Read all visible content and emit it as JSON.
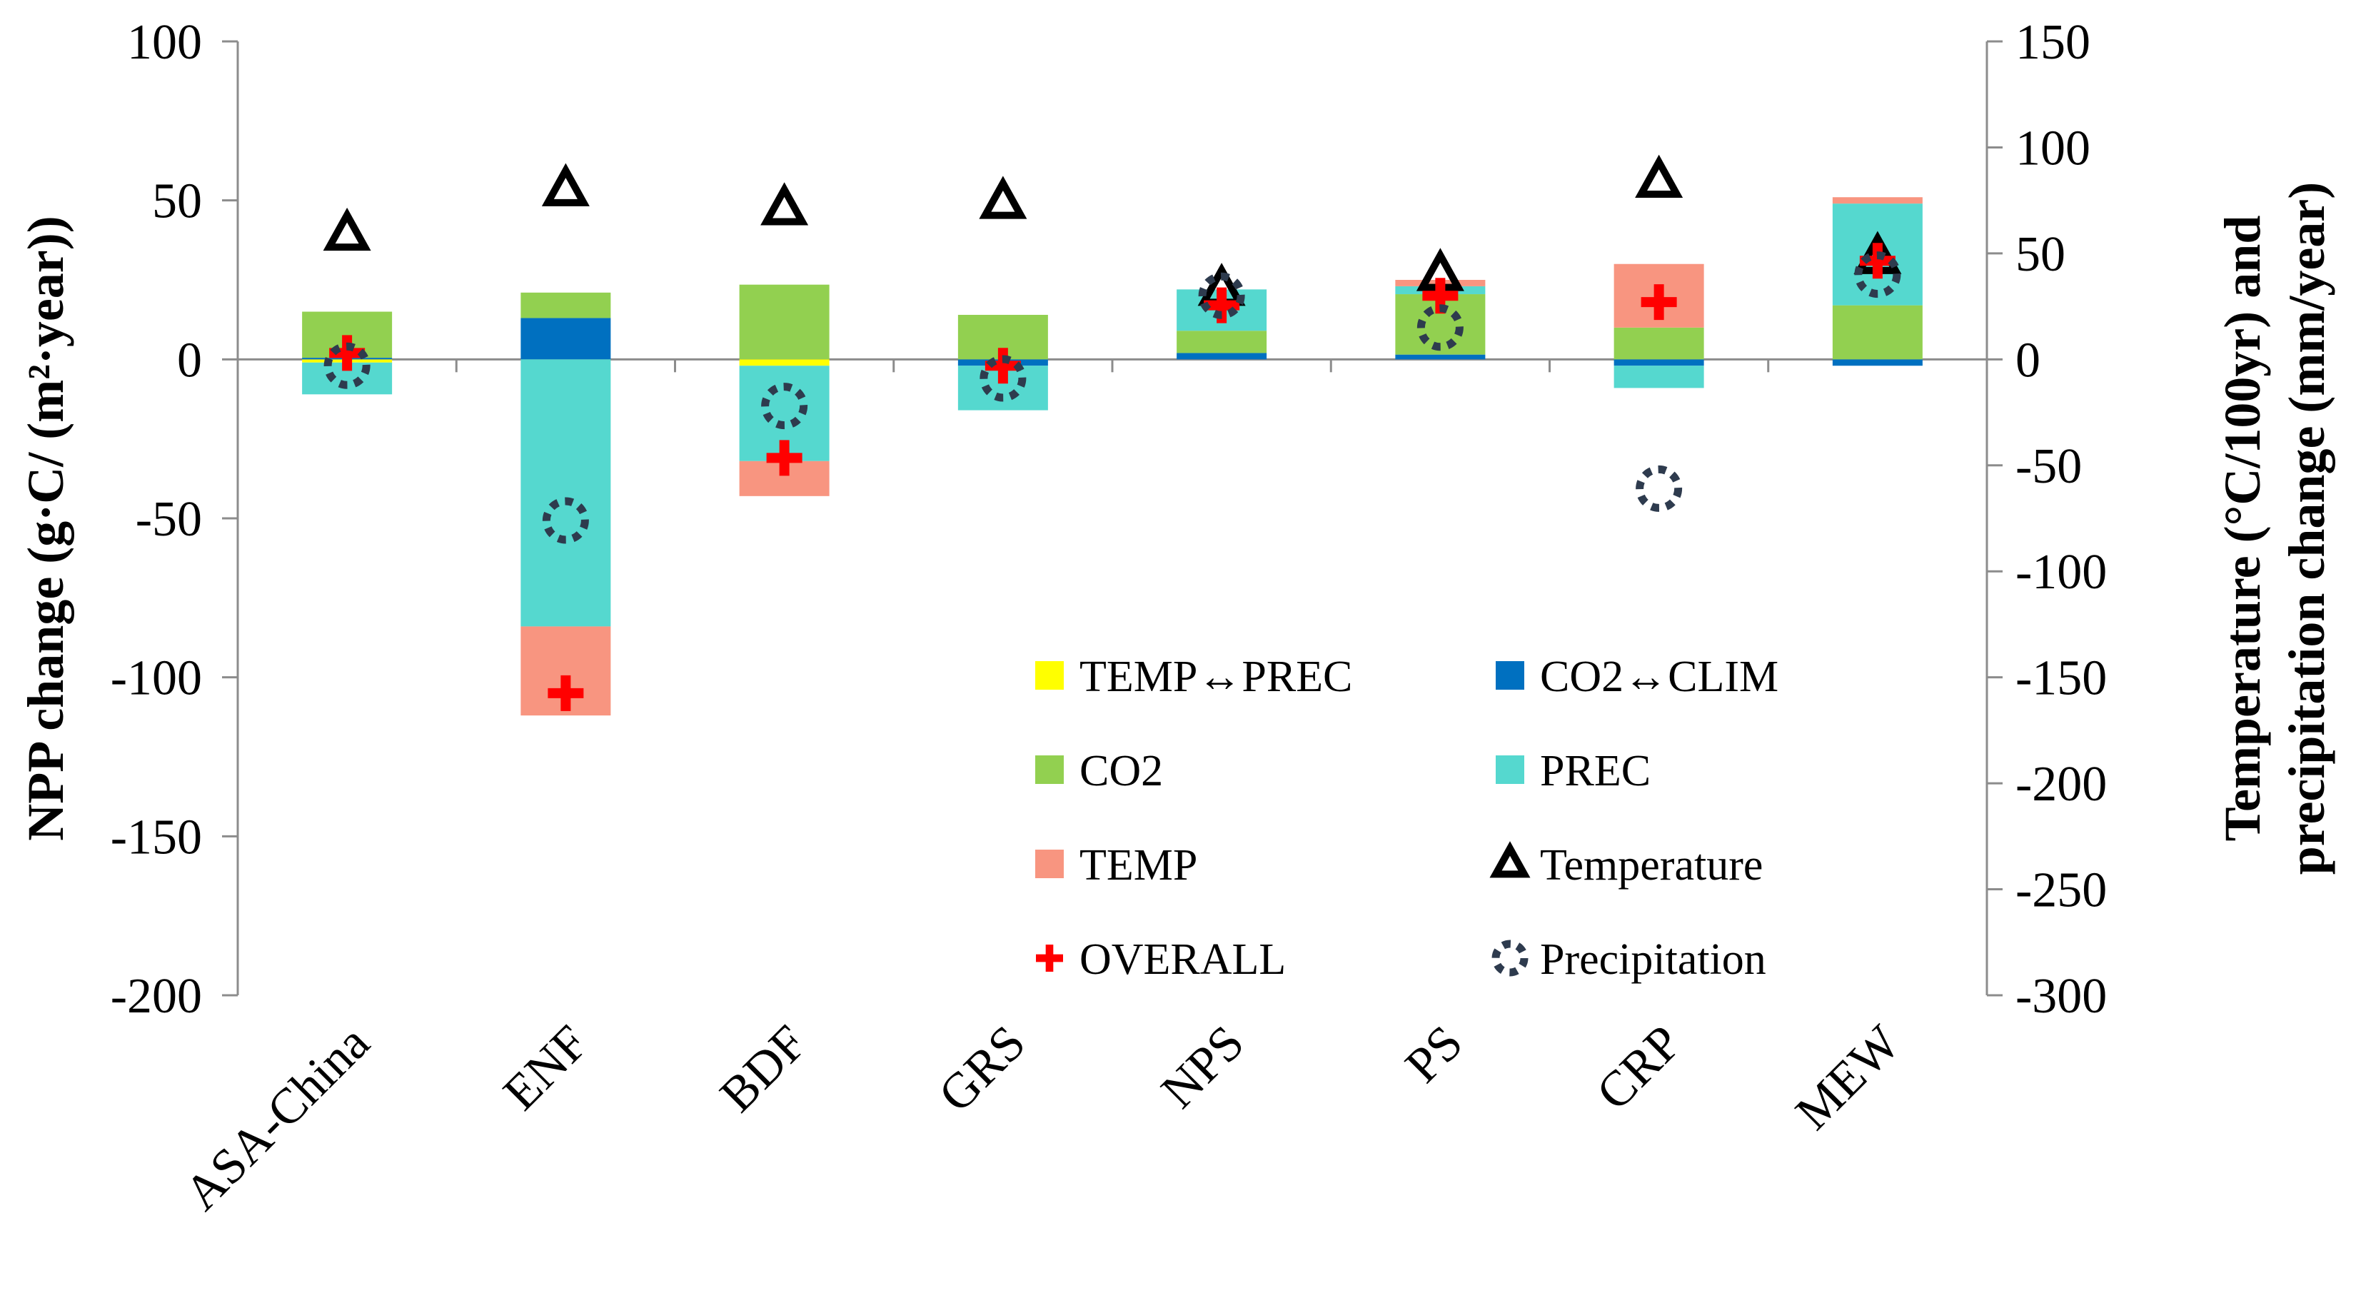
{
  "chart_data": {
    "type": "bar",
    "subtype": "stacked-bar-with-markers",
    "categories": [
      "ASA-China",
      "ENF",
      "BDF",
      "GRS",
      "NPS",
      "PS",
      "CRP",
      "MEW"
    ],
    "ylabel": "NPP change  (g·C/ (m²·year))",
    "y2label": [
      "Temperature (°C/100yr) and",
      "precipitation change (mm/year)"
    ],
    "ylim": [
      -200,
      100
    ],
    "y2lim": [
      -300,
      150
    ],
    "yticks": [
      "100",
      "50",
      "0",
      "-50",
      "-100",
      "-150",
      "-200"
    ],
    "y2ticks": [
      "150",
      "100",
      "50",
      "0",
      "-50",
      "-100",
      "-150",
      "-200",
      "-250",
      "-300"
    ],
    "legend_position": "lower-right inside plot",
    "series": [
      {
        "name": "TEMP↔PREC",
        "kind": "stacked",
        "color": "#FFFF00",
        "values": [
          -1,
          0,
          -2,
          0,
          0,
          0,
          0,
          0
        ]
      },
      {
        "name": "CO2↔CLIM",
        "kind": "stacked",
        "color": "#0070C0",
        "values": [
          0.5,
          13,
          0,
          -2,
          2,
          1.5,
          -2,
          -2
        ]
      },
      {
        "name": "CO2",
        "kind": "stacked",
        "color": "#92D050",
        "values": [
          14.5,
          8,
          23.5,
          14,
          7,
          19,
          10,
          17
        ]
      },
      {
        "name": "PREC",
        "kind": "stacked",
        "color": "#55D8CF",
        "values": [
          -10,
          -84,
          -30,
          -14,
          13,
          2.5,
          -7,
          32
        ]
      },
      {
        "name": "TEMP",
        "kind": "stacked",
        "color": "#F89580",
        "values": [
          0,
          -28,
          -11,
          0,
          0,
          2,
          20,
          2
        ]
      },
      {
        "name": "Temperature",
        "kind": "marker",
        "axis": "secondary",
        "marker": "triangle",
        "values": [
          59,
          80,
          71,
          74,
          33,
          40,
          84,
          48
        ]
      },
      {
        "name": "OVERALL",
        "kind": "marker",
        "axis": "primary",
        "marker": "plus",
        "color": "#FF0000",
        "values": [
          2,
          -105,
          -31,
          -2,
          17,
          20,
          18,
          31
        ]
      },
      {
        "name": "Precipitation",
        "kind": "marker",
        "axis": "secondary",
        "marker": "dotted-circle",
        "color": "#2E3B4E",
        "values": [
          -3,
          -76,
          -22,
          -9,
          30,
          15,
          -61,
          40
        ]
      }
    ]
  }
}
